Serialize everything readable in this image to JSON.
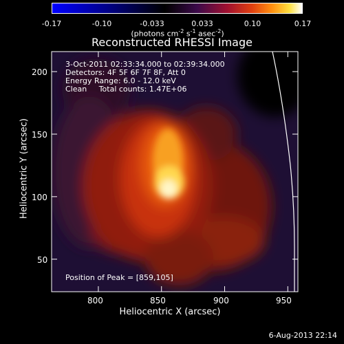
{
  "colorbar": {
    "tick_labels": [
      "-0.17",
      "-0.10",
      "-0.033",
      "0.033",
      "0.10",
      "0.17"
    ],
    "units_label": "(photons cm",
    "units_exp1": "-2",
    "units_mid1": " s",
    "units_exp2": "-1",
    "units_mid2": " asec",
    "units_exp3": "-2",
    "units_end": ")"
  },
  "title": "Reconstructed RHESSI Image",
  "info": {
    "time_range": "3-Oct-2011 02:33:34.000 to 02:39:34.000",
    "detectors": "Detectors: 4F 5F 6F 7F 8F, Att 0",
    "energy": "Energy Range: 6.0 - 12.0 keV",
    "clean": "Clean     Total counts: 1.47E+06",
    "peak": "Position of Peak = [859,105]"
  },
  "axes": {
    "xlabel": "Heliocentric X (arcsec)",
    "ylabel": "Heliocentric Y (arcsec)",
    "xlim": [
      763,
      958
    ],
    "ylim": [
      24,
      216
    ],
    "xticks": [
      800,
      850,
      900,
      950
    ],
    "yticks": [
      50,
      100,
      150,
      200
    ]
  },
  "peak": [
    859,
    105
  ],
  "timestamp": "6-Aug-2013 22:14"
}
